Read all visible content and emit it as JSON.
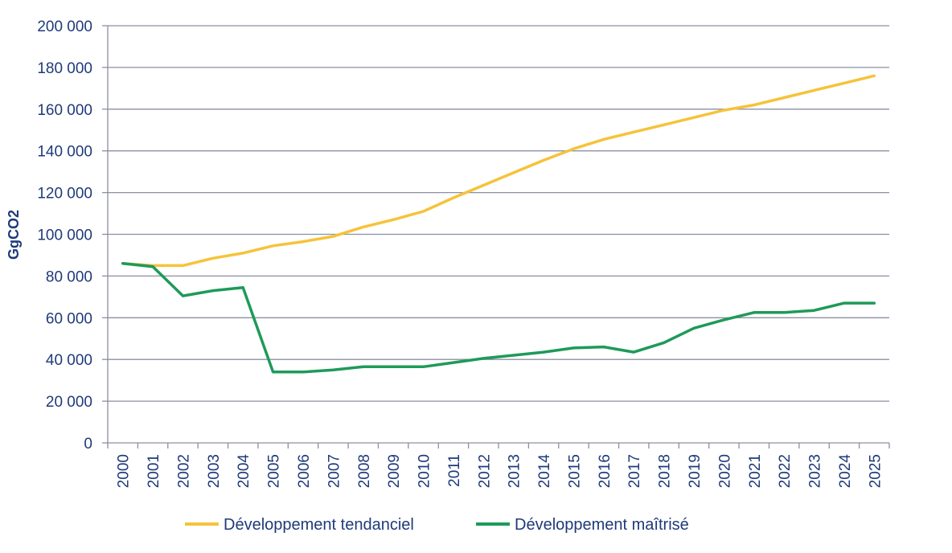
{
  "chart_data": {
    "type": "line",
    "title": "",
    "xlabel": "",
    "ylabel": "GgCO2",
    "ylim": [
      0,
      200000
    ],
    "yticks": [
      "0",
      "20 000",
      "40 000",
      "60 000",
      "80 000",
      "100 000",
      "120 000",
      "140 000",
      "160 000",
      "180 000",
      "200 000"
    ],
    "ytick_values": [
      0,
      20000,
      40000,
      60000,
      80000,
      100000,
      120000,
      140000,
      160000,
      180000,
      200000
    ],
    "x": [
      "2000",
      "2001",
      "2002",
      "2003",
      "2004",
      "2005",
      "2006",
      "2007",
      "2008",
      "2009",
      "2010",
      "2011",
      "2012",
      "2013",
      "2014",
      "2015",
      "2016",
      "2017",
      "2018",
      "2019",
      "2020",
      "2021",
      "2022",
      "2023",
      "2024",
      "2025"
    ],
    "grid": true,
    "legend_position": "bottom",
    "series": [
      {
        "name": "Développement tendanciel",
        "color": "#f5c33b",
        "values": [
          86000,
          85000,
          85000,
          88500,
          91000,
          94500,
          96500,
          99000,
          103500,
          107000,
          111000,
          117500,
          123500,
          129500,
          135500,
          141000,
          145500,
          149000,
          152500,
          156000,
          159500,
          162000,
          165500,
          169000,
          172500,
          176000
        ]
      },
      {
        "name": "Développement maîtrisé",
        "color": "#1e9a5a",
        "values": [
          86000,
          84500,
          70500,
          73000,
          74500,
          34000,
          34000,
          35000,
          36500,
          36500,
          36500,
          38500,
          40500,
          42000,
          43500,
          45500,
          46000,
          43500,
          48000,
          55000,
          59000,
          62500,
          62500,
          63500,
          67000,
          67000
        ]
      }
    ]
  }
}
